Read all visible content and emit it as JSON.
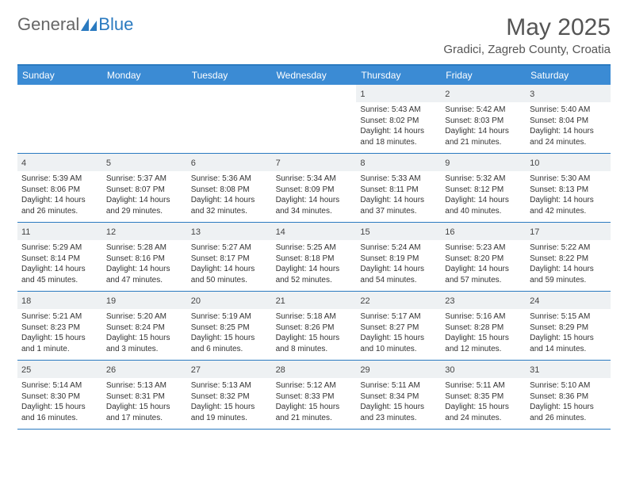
{
  "brand": {
    "part1": "General",
    "part2": "Blue"
  },
  "title": "May 2025",
  "location": "Gradici, Zagreb County, Croatia",
  "colors": {
    "header_bar": "#3b8bd4",
    "accent_line": "#2a7ac0",
    "daynum_bg": "#eef1f3",
    "text": "#333333",
    "muted": "#555555"
  },
  "weekdays": [
    "Sunday",
    "Monday",
    "Tuesday",
    "Wednesday",
    "Thursday",
    "Friday",
    "Saturday"
  ],
  "weeks": [
    [
      null,
      null,
      null,
      null,
      {
        "n": "1",
        "sr": "5:43 AM",
        "ss": "8:02 PM",
        "dl": "14 hours and 18 minutes."
      },
      {
        "n": "2",
        "sr": "5:42 AM",
        "ss": "8:03 PM",
        "dl": "14 hours and 21 minutes."
      },
      {
        "n": "3",
        "sr": "5:40 AM",
        "ss": "8:04 PM",
        "dl": "14 hours and 24 minutes."
      }
    ],
    [
      {
        "n": "4",
        "sr": "5:39 AM",
        "ss": "8:06 PM",
        "dl": "14 hours and 26 minutes."
      },
      {
        "n": "5",
        "sr": "5:37 AM",
        "ss": "8:07 PM",
        "dl": "14 hours and 29 minutes."
      },
      {
        "n": "6",
        "sr": "5:36 AM",
        "ss": "8:08 PM",
        "dl": "14 hours and 32 minutes."
      },
      {
        "n": "7",
        "sr": "5:34 AM",
        "ss": "8:09 PM",
        "dl": "14 hours and 34 minutes."
      },
      {
        "n": "8",
        "sr": "5:33 AM",
        "ss": "8:11 PM",
        "dl": "14 hours and 37 minutes."
      },
      {
        "n": "9",
        "sr": "5:32 AM",
        "ss": "8:12 PM",
        "dl": "14 hours and 40 minutes."
      },
      {
        "n": "10",
        "sr": "5:30 AM",
        "ss": "8:13 PM",
        "dl": "14 hours and 42 minutes."
      }
    ],
    [
      {
        "n": "11",
        "sr": "5:29 AM",
        "ss": "8:14 PM",
        "dl": "14 hours and 45 minutes."
      },
      {
        "n": "12",
        "sr": "5:28 AM",
        "ss": "8:16 PM",
        "dl": "14 hours and 47 minutes."
      },
      {
        "n": "13",
        "sr": "5:27 AM",
        "ss": "8:17 PM",
        "dl": "14 hours and 50 minutes."
      },
      {
        "n": "14",
        "sr": "5:25 AM",
        "ss": "8:18 PM",
        "dl": "14 hours and 52 minutes."
      },
      {
        "n": "15",
        "sr": "5:24 AM",
        "ss": "8:19 PM",
        "dl": "14 hours and 54 minutes."
      },
      {
        "n": "16",
        "sr": "5:23 AM",
        "ss": "8:20 PM",
        "dl": "14 hours and 57 minutes."
      },
      {
        "n": "17",
        "sr": "5:22 AM",
        "ss": "8:22 PM",
        "dl": "14 hours and 59 minutes."
      }
    ],
    [
      {
        "n": "18",
        "sr": "5:21 AM",
        "ss": "8:23 PM",
        "dl": "15 hours and 1 minute."
      },
      {
        "n": "19",
        "sr": "5:20 AM",
        "ss": "8:24 PM",
        "dl": "15 hours and 3 minutes."
      },
      {
        "n": "20",
        "sr": "5:19 AM",
        "ss": "8:25 PM",
        "dl": "15 hours and 6 minutes."
      },
      {
        "n": "21",
        "sr": "5:18 AM",
        "ss": "8:26 PM",
        "dl": "15 hours and 8 minutes."
      },
      {
        "n": "22",
        "sr": "5:17 AM",
        "ss": "8:27 PM",
        "dl": "15 hours and 10 minutes."
      },
      {
        "n": "23",
        "sr": "5:16 AM",
        "ss": "8:28 PM",
        "dl": "15 hours and 12 minutes."
      },
      {
        "n": "24",
        "sr": "5:15 AM",
        "ss": "8:29 PM",
        "dl": "15 hours and 14 minutes."
      }
    ],
    [
      {
        "n": "25",
        "sr": "5:14 AM",
        "ss": "8:30 PM",
        "dl": "15 hours and 16 minutes."
      },
      {
        "n": "26",
        "sr": "5:13 AM",
        "ss": "8:31 PM",
        "dl": "15 hours and 17 minutes."
      },
      {
        "n": "27",
        "sr": "5:13 AM",
        "ss": "8:32 PM",
        "dl": "15 hours and 19 minutes."
      },
      {
        "n": "28",
        "sr": "5:12 AM",
        "ss": "8:33 PM",
        "dl": "15 hours and 21 minutes."
      },
      {
        "n": "29",
        "sr": "5:11 AM",
        "ss": "8:34 PM",
        "dl": "15 hours and 23 minutes."
      },
      {
        "n": "30",
        "sr": "5:11 AM",
        "ss": "8:35 PM",
        "dl": "15 hours and 24 minutes."
      },
      {
        "n": "31",
        "sr": "5:10 AM",
        "ss": "8:36 PM",
        "dl": "15 hours and 26 minutes."
      }
    ]
  ],
  "labels": {
    "sunrise": "Sunrise:",
    "sunset": "Sunset:",
    "daylight": "Daylight:"
  }
}
